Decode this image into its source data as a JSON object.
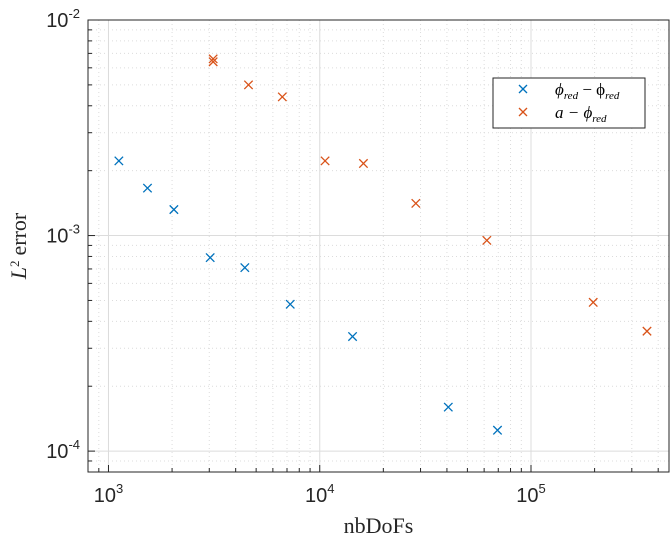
{
  "chart_data": {
    "type": "scatter",
    "xscale": "log",
    "yscale": "log",
    "xlim": [
      800,
      450000
    ],
    "ylim": [
      8e-05,
      0.01
    ],
    "xlabel": "nbDoFs",
    "ylabel_base": "L",
    "ylabel_sup": "2",
    "ylabel_rest": "error",
    "grid": true,
    "legend_placement": "top-right",
    "x_ticks": [
      {
        "value": 1000,
        "base": "10",
        "exp": "3"
      },
      {
        "value": 10000,
        "base": "10",
        "exp": "4"
      },
      {
        "value": 100000,
        "base": "10",
        "exp": "5"
      }
    ],
    "y_ticks": [
      {
        "value": 0.0001,
        "base": "10",
        "exp": "-4"
      },
      {
        "value": 0.001,
        "base": "10",
        "exp": "-3"
      },
      {
        "value": 0.01,
        "base": "10",
        "exp": "-2"
      }
    ],
    "series": [
      {
        "name": "ϕred − ϕred",
        "legend_main": "ϕ",
        "legend_sub": "red",
        "legend_mid": " − ϕ",
        "legend_sub2": "red",
        "color": "#0072BD",
        "marker": "x",
        "points": [
          [
            1120,
            0.00222
          ],
          [
            1530,
            0.00166
          ],
          [
            2040,
            0.00132
          ],
          [
            3030,
            0.00079
          ],
          [
            4420,
            0.00071
          ],
          [
            7250,
            0.00048
          ],
          [
            14300,
            0.00034
          ],
          [
            40600,
            0.00016
          ],
          [
            69400,
            0.000125
          ]
        ]
      },
      {
        "name": "a − ϕred",
        "legend_main": "a − ϕ",
        "legend_sub": "red",
        "legend_mid": "",
        "legend_sub2": "",
        "color": "#D95319",
        "marker": "x",
        "points": [
          [
            3130,
            0.0066
          ],
          [
            3130,
            0.0064
          ],
          [
            4600,
            0.005
          ],
          [
            6650,
            0.0044
          ],
          [
            10600,
            0.00222
          ],
          [
            16100,
            0.00216
          ],
          [
            28500,
            0.00141
          ],
          [
            61800,
            0.00095
          ],
          [
            197000,
            0.00049
          ],
          [
            354000,
            0.00036
          ]
        ]
      }
    ]
  },
  "colors": {
    "axis": "#262626",
    "grid": "#dcdcdc",
    "background": "#ffffff"
  }
}
